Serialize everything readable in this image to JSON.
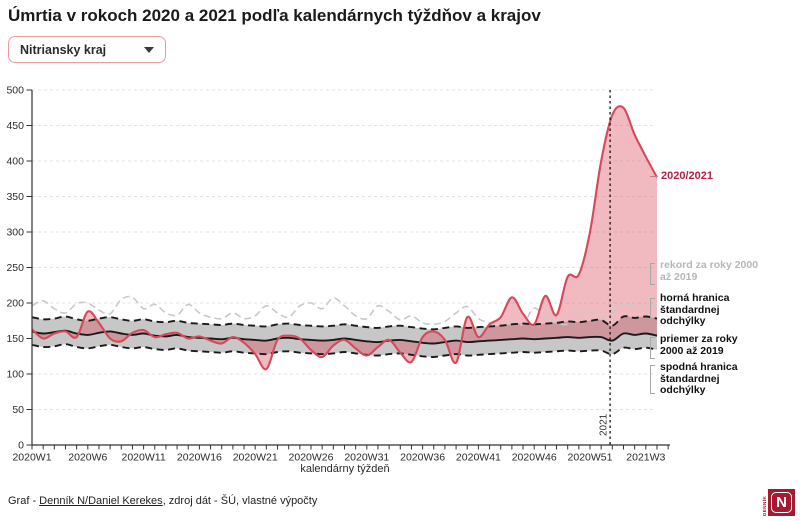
{
  "page": {
    "title": "Úmrtia v rokoch 2020 a 2021 podľa kalendárnych týždňov a krajov",
    "footer": {
      "prefix": "Graf - ",
      "link": "Denník N/Daniel Kerekes",
      "suffix": ", zdroj dát - ŠÚ, vlastné výpočty"
    },
    "logo": {
      "letter": "N",
      "vertical_text": "DENNÍK",
      "color": "#a6192e"
    }
  },
  "region_select": {
    "value": "Nitriansky kraj",
    "icon": "chevron-down"
  },
  "chart_data": {
    "type": "line",
    "title": "Úmrtia v rokoch 2020 a 2021 podľa kalendárnych týždňov a krajov",
    "xlabel": "kalendárny týždeň",
    "ylabel": "",
    "ylim": [
      0,
      500
    ],
    "ytick_step": 50,
    "grid": true,
    "legend_position": "right-annotations",
    "x_ticks": [
      [
        0,
        "2020W1"
      ],
      [
        5,
        "2020W6"
      ],
      [
        10,
        "2020W11"
      ],
      [
        15,
        "2020W16"
      ],
      [
        20,
        "2020W21"
      ],
      [
        25,
        "2020W26"
      ],
      [
        30,
        "2020W31"
      ],
      [
        35,
        "2020W36"
      ],
      [
        40,
        "2020W41"
      ],
      [
        45,
        "2020W46"
      ],
      [
        50,
        "2020W51"
      ],
      [
        55,
        "2021W3"
      ]
    ],
    "weeks_total": 57,
    "year_divider": {
      "label": "2021",
      "x_index": 51.8
    },
    "series": [
      {
        "key": "main",
        "name": "2020/2021",
        "color": "#d6495b",
        "label_color": "#b62045",
        "style": "solid",
        "fill_to_mean": "rgba(216,74,90,0.38)",
        "values": [
          163,
          150,
          157,
          160,
          152,
          188,
          172,
          150,
          146,
          158,
          162,
          152,
          156,
          158,
          150,
          153,
          147,
          143,
          152,
          144,
          128,
          107,
          148,
          154,
          150,
          134,
          124,
          140,
          148,
          136,
          126,
          138,
          148,
          130,
          117,
          152,
          160,
          148,
          116,
          180,
          152,
          170,
          180,
          208,
          185,
          170,
          210,
          183,
          237,
          240,
          300,
          400,
          465,
          475,
          437,
          406,
          377
        ]
      },
      {
        "key": "record",
        "name": "rekord za roky 2000 až 2019",
        "color": "#c9c9c9",
        "style": "dashed",
        "values": [
          196,
          203,
          192,
          186,
          199,
          200,
          190,
          185,
          205,
          208,
          192,
          198,
          186,
          183,
          198,
          186,
          180,
          178,
          186,
          178,
          182,
          196,
          186,
          180,
          196,
          200,
          192,
          207,
          196,
          182,
          178,
          196,
          188,
          176,
          182,
          172,
          170,
          174,
          186,
          195,
          178,
          172,
          168,
          172,
          170,
          193,
          178,
          172,
          170,
          182,
          188,
          180,
          186,
          198,
          196,
          194,
          199
        ]
      },
      {
        "key": "upper",
        "name": "horná hranica štandardnej odchýlky",
        "color": "#1a1a1a",
        "style": "dashed",
        "values": [
          180,
          177,
          178,
          181,
          177,
          175,
          178,
          180,
          177,
          175,
          177,
          174,
          173,
          175,
          172,
          171,
          170,
          169,
          171,
          169,
          168,
          167,
          170,
          171,
          169,
          168,
          167,
          168,
          170,
          168,
          166,
          165,
          167,
          168,
          166,
          164,
          163,
          165,
          167,
          165,
          166,
          167,
          168,
          170,
          171,
          170,
          171,
          172,
          174,
          173,
          175,
          176,
          168,
          181,
          179,
          181,
          178
        ]
      },
      {
        "key": "mean",
        "name": "priemer za roky 2000 až 2019",
        "color": "#1a1a1a",
        "style": "solid",
        "values": [
          160,
          157,
          159,
          161,
          157,
          155,
          158,
          160,
          157,
          155,
          157,
          154,
          153,
          155,
          152,
          151,
          150,
          149,
          151,
          149,
          148,
          147,
          150,
          151,
          149,
          148,
          147,
          148,
          150,
          148,
          146,
          145,
          147,
          148,
          146,
          144,
          143,
          145,
          147,
          145,
          146,
          147,
          148,
          149,
          150,
          149,
          150,
          151,
          152,
          151,
          152,
          152,
          147,
          157,
          155,
          157,
          154
        ]
      },
      {
        "key": "lower",
        "name": "spodná hranica štandardnej odchýlky",
        "color": "#1a1a1a",
        "style": "dashed",
        "values": [
          141,
          138,
          139,
          142,
          138,
          136,
          139,
          141,
          138,
          136,
          138,
          135,
          134,
          136,
          133,
          132,
          131,
          130,
          132,
          130,
          129,
          128,
          131,
          132,
          130,
          129,
          128,
          129,
          131,
          129,
          127,
          126,
          128,
          129,
          127,
          125,
          124,
          126,
          128,
          126,
          127,
          128,
          129,
          130,
          131,
          130,
          131,
          132,
          133,
          132,
          133,
          133,
          128,
          137,
          135,
          137,
          134
        ]
      }
    ],
    "band_fill": "#c7c7c7"
  }
}
